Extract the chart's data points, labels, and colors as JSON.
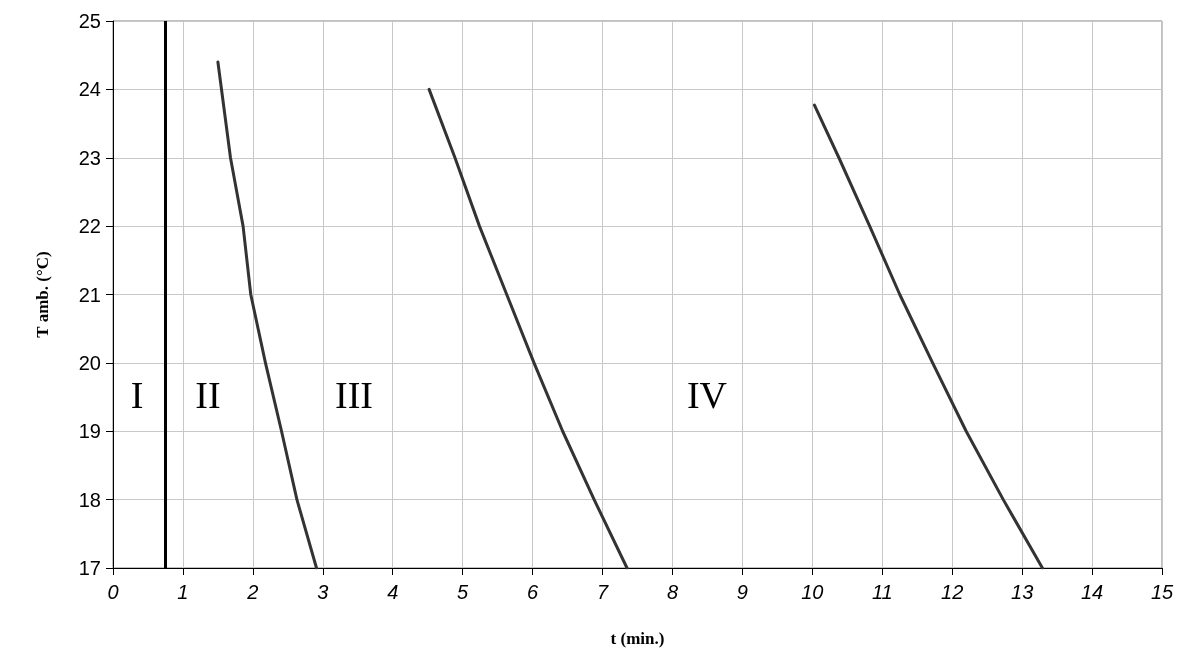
{
  "chart_data": {
    "type": "line",
    "xlabel": "t (min.)",
    "ylabel": "T amb. (°C)",
    "series": [
      {
        "color": "#333333",
        "x": [
          1.5,
          1.68,
          1.86,
          1.97,
          2.18,
          2.41,
          2.63,
          2.91
        ],
        "values": [
          24.4,
          23,
          22,
          21,
          20,
          19,
          18,
          17
        ]
      },
      {
        "color": "#333333",
        "x": [
          4.52,
          4.89,
          5.24,
          5.63,
          6.02,
          6.43,
          6.88,
          7.35
        ],
        "values": [
          24,
          23,
          22,
          21,
          20,
          19,
          18,
          17
        ]
      },
      {
        "color": "#333333",
        "x": [
          10.03,
          10.38,
          10.82,
          11.25,
          11.72,
          12.2,
          12.73,
          13.29
        ],
        "values": [
          23.77,
          23,
          22,
          21,
          20,
          19,
          18,
          17
        ]
      }
    ],
    "xlim": [
      0,
      15
    ],
    "xticks": [
      0,
      1,
      2,
      3,
      4,
      5,
      6,
      7,
      8,
      9,
      10,
      11,
      12,
      13,
      14,
      15
    ],
    "ylim": [
      17,
      25
    ],
    "yticks": [
      17,
      18,
      19,
      20,
      21,
      22,
      23,
      24,
      25
    ],
    "ref_lines": [
      {
        "axis": "x",
        "value": 0.75,
        "color": "#000000"
      }
    ],
    "annotations": [
      "I",
      "II",
      "III",
      "IV"
    ],
    "grid": true,
    "marker": "none",
    "line_style": "solid"
  }
}
